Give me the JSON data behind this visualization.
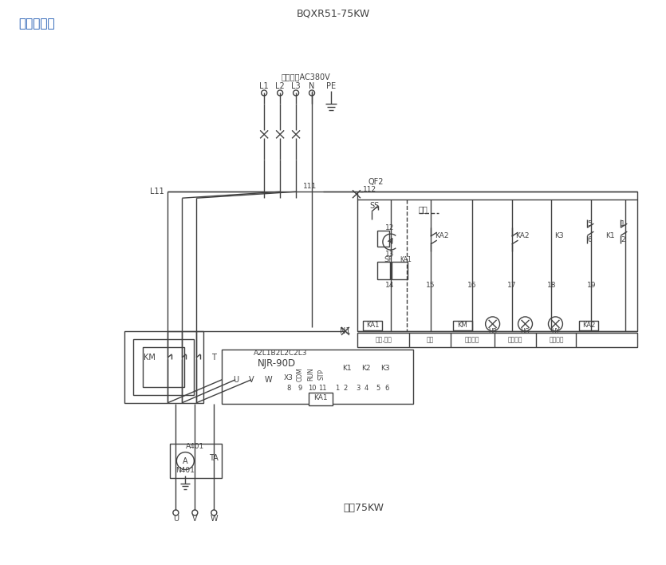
{
  "title": "BQXR51-75KW",
  "subtitle": "电气原理图",
  "bg": "#ffffff",
  "lc": "#404040",
  "blue": "#1a56b0",
  "fw": [
    8.35,
    7.08
  ],
  "dpi": 100,
  "input_lbl": "进线电压AC380V",
  "motor_lbl": "电机75KW",
  "njr": "NJR-90D",
  "njr_top": "A2L1B2L2C2L3",
  "ind_labels": [
    "启动,停止",
    "运行",
    "电源指示",
    "频路指示",
    "故障指示"
  ],
  "short_lbl": "短接",
  "in_terms": [
    "L1",
    "L2",
    "L3",
    "N",
    "PE"
  ],
  "out_terms": [
    "U",
    "V",
    "W"
  ]
}
